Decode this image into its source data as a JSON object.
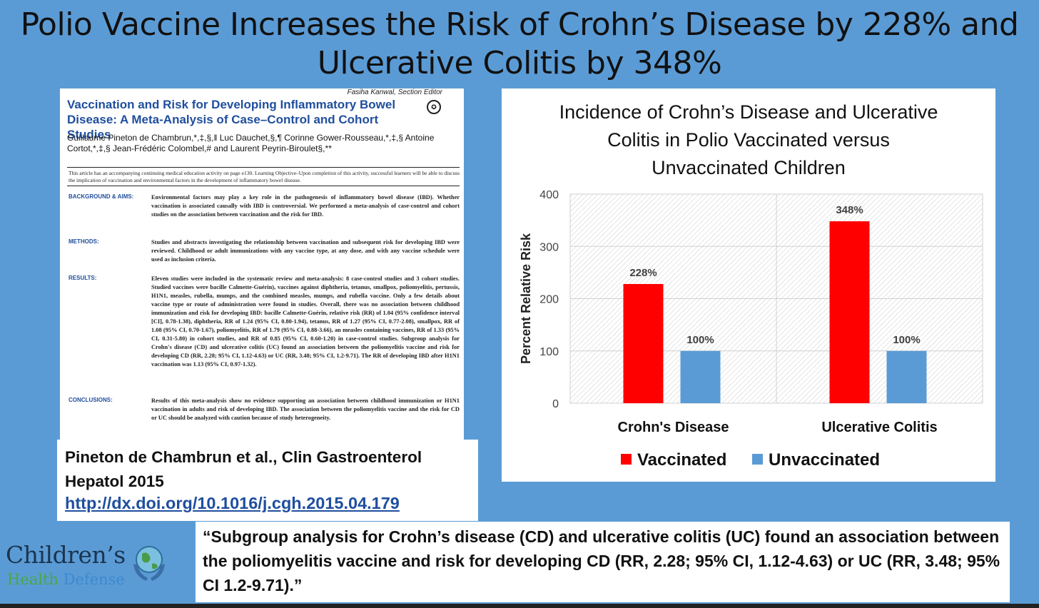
{
  "slide": {
    "title_line1": "Polio Vaccine Increases the Risk of Crohn’s Disease by 228% and",
    "title_line2": "Ulcerative Colitis by 348%"
  },
  "paper": {
    "editor": "Fasiha Kanwal, Section Editor",
    "title": "Vaccination and Risk for Developing Inflammatory Bowel Disease: A Meta-Analysis of Case–Control and Cohort Studies",
    "authors": "Guillaume Pineton de Chambrun,*,‡,§,‖ Luc Dauchet,§,¶ Corinne Gower-Rousseau,*,‡,§ Antoine Cortot,*,‡,§ Jean-Frédéric Colombel,# and Laurent Peyrin-Biroulet§,**",
    "cme": "This article has an accompanying continuing medical education activity on page e130. Learning Objective–Upon completion of this activity, successful learners will be able to discuss the implication of vaccination and environmental factors in the development of inflammatory bowel disease.",
    "sections": [
      {
        "label": "BACKGROUND & AIMS:",
        "text": "Environmental factors may play a key role in the pathogenesis of inflammatory bowel disease (IBD). Whether vaccination is associated causally with IBD is controversial. We performed a meta-analysis of case-control and cohort studies on the association between vaccination and the risk for IBD."
      },
      {
        "label": "METHODS:",
        "text": "Studies and abstracts investigating the relationship between vaccination and subsequent risk for developing IBD were reviewed. Childhood or adult immunizations with any vaccine type, at any dose, and with any vaccine schedule were used as inclusion criteria."
      },
      {
        "label": "RESULTS:",
        "text": "Eleven studies were included in the systematic review and meta-analysis: 8 case-control studies and 3 cohort studies. Studied vaccines were bacille Calmette-Guérin), vaccines against diphtheria, tetanus, smallpox, poliomyelitis, pertussis, H1N1, measles, rubella, mumps, and the combined measles, mumps, and rubella vaccine. Only a few details about vaccine type or route of administration were found in studies. Overall, there was no association between childhood immunization and risk for developing IBD: bacille Calmette-Guérin, relative risk (RR) of 1.04 (95% confidence interval [CI], 0.78-1.38), diphtheria, RR of 1.24 (95% CI, 0.80-1.94), tetanus, RR of 1.27 (95% CI, 0.77-2.08), smallpox, RR of 1.08 (95% CI, 0.70-1.67), poliomyelitis, RR of 1.79 (95% CI, 0.88-3.66), an measles containing vaccines, RR of 1.33 (95% CI, 0.31-5.80) in cohort studies, and RR of 0.85 (95% CI, 0.60-1.20) in case-control studies. Subgroup analysis for Crohn's disease (CD) and ulcerative colitis (UC) found an association between the poliomyelitis vaccine and risk for developing CD (RR, 2.28; 95% CI, 1.12-4.63) or UC (RR, 3.48; 95% CI, 1.2-9.71). The RR of developing IBD after H1N1 vaccination was 1.13 (95% CI, 0.97-1.32)."
      },
      {
        "label": "CONCLUSIONS:",
        "text": "Results of this meta-analysis show no evidence supporting an association between childhood immunization or H1N1 vaccination in adults and risk of developing IBD. The association between the poliomyelitis vaccine and the risk for CD or UC should be analyzed with caution because of study heterogeneity."
      }
    ]
  },
  "citation": {
    "line1": "Pineton de Chambrun et al., Clin Gastroenterol",
    "line2": "Hepatol 2015",
    "link": "http://dx.doi.org/10.1016/j.cgh.2015.04.179"
  },
  "quote": {
    "text": "“Subgroup analysis for Crohn’s disease (CD) and ulcerative colitis (UC) found an association between the poliomyelitis vaccine and risk for developing CD (RR, 2.28; 95% CI, 1.12-4.63) or UC (RR, 3.48; 95% CI 1.2-9.71).”"
  },
  "logo": {
    "line1": "Children’s",
    "line2a": "Health",
    "line2b": "Defense"
  },
  "chart_data": {
    "type": "bar",
    "title_lines": [
      "Incidence of Crohn’s Disease and Ulcerative",
      "Colitis in Polio Vaccinated versus",
      "Unvaccinated Children"
    ],
    "ylabel": "Percent Relative Risk",
    "ylim": [
      0,
      400
    ],
    "yticks": [
      0,
      100,
      200,
      300,
      400
    ],
    "categories": [
      "Crohn's Disease",
      "Ulcerative Colitis"
    ],
    "series": [
      {
        "name": "Vaccinated",
        "values": [
          228,
          348
        ],
        "labels": [
          "228%",
          "348%"
        ],
        "color": "#ff0000"
      },
      {
        "name": "Unvaccinated",
        "values": [
          100,
          100
        ],
        "labels": [
          "100%",
          "100%"
        ],
        "color": "#5b9bd5"
      }
    ],
    "legend_position": "bottom",
    "plot_background": "hatched"
  },
  "colors": {
    "background": "#5b9bd5",
    "paper_title": "#1f4e9e",
    "link": "#1f4e9e"
  }
}
